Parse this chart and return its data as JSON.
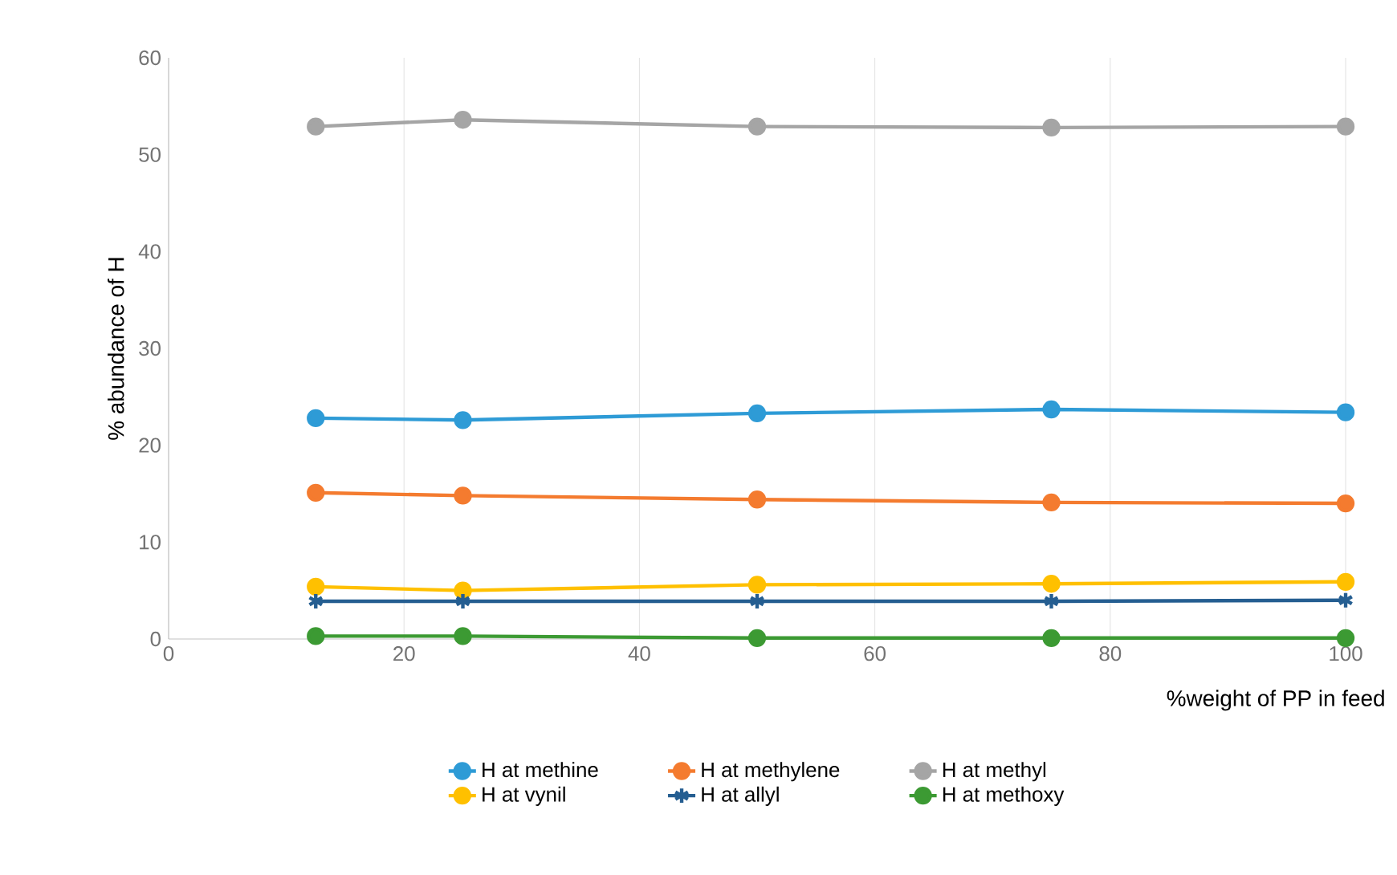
{
  "chart_data": {
    "type": "line",
    "xlabel": "%weight of PP in feed",
    "ylabel": "% abundance of H",
    "x": [
      12.5,
      25,
      50,
      75,
      100
    ],
    "xlim": [
      0,
      100
    ],
    "xticks": [
      0,
      20,
      40,
      60,
      80,
      100
    ],
    "ylim": [
      0,
      60
    ],
    "yticks": [
      0,
      10,
      20,
      30,
      40,
      50,
      60
    ],
    "grid": "x",
    "legend": "bottom",
    "marker": "circle",
    "line_style": "solid",
    "series": [
      {
        "name": "H at methine",
        "color": "#2e9bd6",
        "values": [
          22.8,
          22.6,
          23.3,
          23.7,
          23.4
        ]
      },
      {
        "name": "H at methylene",
        "color": "#f47b2f",
        "values": [
          15.1,
          14.8,
          14.4,
          14.1,
          14.0
        ]
      },
      {
        "name": "H at methyl",
        "color": "#a5a5a5",
        "values": [
          52.9,
          53.6,
          52.9,
          52.8,
          52.9
        ]
      },
      {
        "name": "H at vynil",
        "color": "#ffc000",
        "values": [
          5.4,
          5.0,
          5.6,
          5.7,
          5.9
        ]
      },
      {
        "name": "H at allyl",
        "color": "#255e91",
        "marker": "cross",
        "values": [
          3.9,
          3.9,
          3.9,
          3.9,
          4.0
        ]
      },
      {
        "name": "H at methoxy",
        "color": "#3c9a33",
        "values": [
          0.3,
          0.3,
          0.1,
          0.1,
          0.1
        ]
      }
    ]
  }
}
